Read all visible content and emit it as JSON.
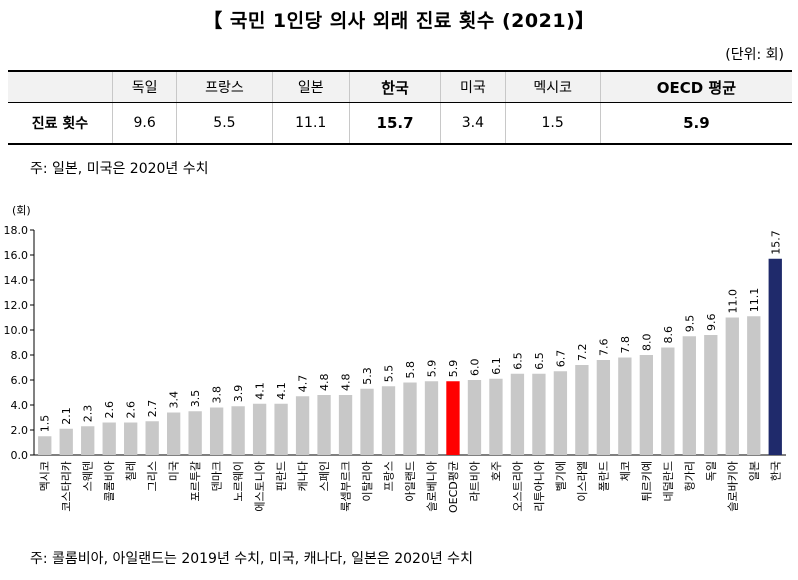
{
  "title": "【 국민 1인당 의사 외래 진료 횟수 (2021)】",
  "unit": "(단위: 회)",
  "table": {
    "row_label": "진료 횟수",
    "columns": [
      {
        "name": "독일",
        "value": "9.6"
      },
      {
        "name": "프랑스",
        "value": "5.5"
      },
      {
        "name": "일본",
        "value": "11.1"
      },
      {
        "name": "한국",
        "value": "15.7"
      },
      {
        "name": "미국",
        "value": "3.4"
      },
      {
        "name": "멕시코",
        "value": "1.5"
      },
      {
        "name": "OECD 평균",
        "value": "5.9"
      }
    ]
  },
  "note1": "주: 일본, 미국은 2020년 수치",
  "note2": "주: 콜롬비아, 아일랜드는 2019년 수치, 미국, 캐나다, 일본은 2020년 수치",
  "colors": {
    "default": "#c8c8c8",
    "oecd": "#ff0000",
    "korea": "#1f2a6b"
  },
  "chart_data": {
    "type": "bar",
    "ylabel": "(회)",
    "ylim": [
      0,
      18
    ],
    "yticks": [
      "0.0",
      "2.0",
      "4.0",
      "6.0",
      "8.0",
      "10.0",
      "12.0",
      "14.0",
      "16.0",
      "18.0"
    ],
    "grid": false,
    "categories": [
      "멕시코",
      "코스타리카",
      "스웨덴",
      "콜롬비아",
      "칠레",
      "그리스",
      "미국",
      "포르투갈",
      "덴마크",
      "노르웨이",
      "에스토니아",
      "핀란드",
      "캐나다",
      "스페인",
      "룩셈부르크",
      "이탈리아",
      "프랑스",
      "아일랜드",
      "슬로베니아",
      "OECD평균",
      "라트비아",
      "호주",
      "오스트리아",
      "리투아니아",
      "벨기에",
      "이스라엘",
      "폴란드",
      "체코",
      "튀르키예",
      "네덜란드",
      "헝가리",
      "독일",
      "슬로바키아",
      "일본",
      "한국"
    ],
    "values": [
      1.5,
      2.1,
      2.3,
      2.6,
      2.6,
      2.7,
      3.4,
      3.5,
      3.8,
      3.9,
      4.1,
      4.1,
      4.7,
      4.8,
      4.8,
      5.3,
      5.5,
      5.8,
      5.9,
      5.9,
      6.0,
      6.1,
      6.5,
      6.5,
      6.7,
      7.2,
      7.6,
      7.8,
      8.0,
      8.6,
      9.5,
      9.6,
      11.0,
      11.1,
      15.7
    ],
    "value_labels": [
      "1.5",
      "2.1",
      "2.3",
      "2.6",
      "2.6",
      "2.7",
      "3.4",
      "3.5",
      "3.8",
      "3.9",
      "4.1",
      "4.1",
      "4.7",
      "4.8",
      "4.8",
      "5.3",
      "5.5",
      "5.8",
      "5.9",
      "5.9",
      "6.0",
      "6.1",
      "6.5",
      "6.5",
      "6.7",
      "7.2",
      "7.6",
      "7.8",
      "8.0",
      "8.6",
      "9.5",
      "9.6",
      "11.0",
      "11.1",
      "15.7"
    ]
  }
}
